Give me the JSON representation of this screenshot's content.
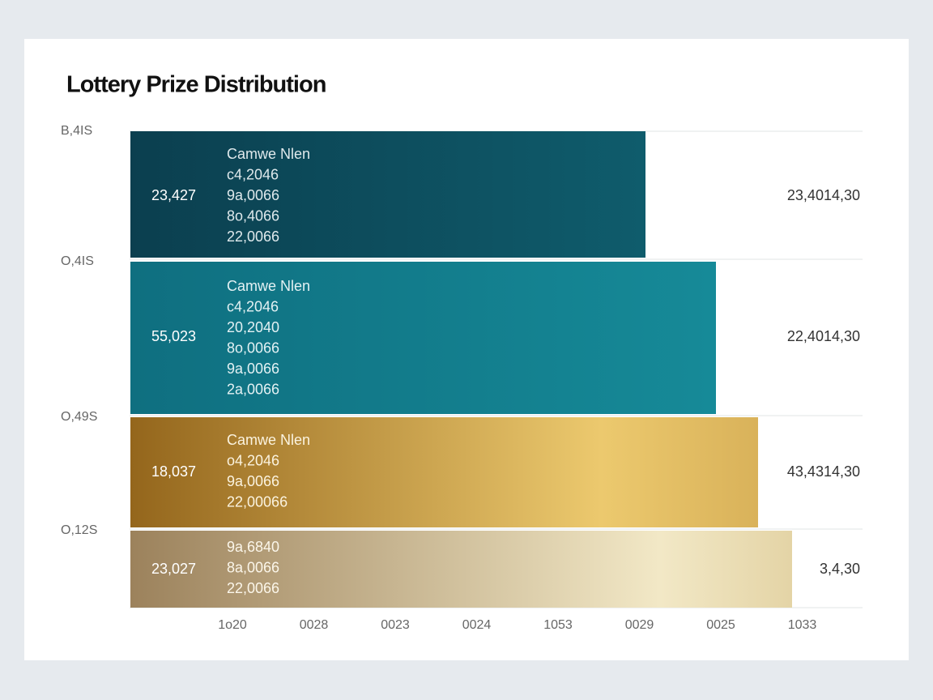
{
  "header": {
    "title": "Lottery Prize Distribution"
  },
  "rows": [
    {
      "axis_label": "B,4IS",
      "value_label": "23,427",
      "lines": [
        "Camwe Nlen",
        "c4,2046",
        "9a,0066",
        "8o,4066",
        "22,0066"
      ],
      "right_label": "23,4014,30"
    },
    {
      "axis_label": "O,4IS",
      "value_label": "55,023",
      "lines": [
        "Camwe Nlen",
        "c4,2046",
        "20,2040",
        "8o,0066",
        "9a,0066",
        "2a,0066"
      ],
      "right_label": "22,4014,30"
    },
    {
      "axis_label": "O,49S",
      "value_label": "18,037",
      "lines": [
        "Camwe Nlen",
        "o4,2046",
        "9a,0066",
        "22,00066"
      ],
      "right_label": "43,4314,30"
    },
    {
      "axis_label": "O,12S",
      "value_label": "23,027",
      "lines": [
        "9a,6840",
        "8a,0066",
        "22,0066"
      ],
      "right_label": "3,4,30"
    }
  ],
  "x_labels": [
    "1o20",
    "0028",
    "0023",
    "0024",
    "1053",
    "0029",
    "0025",
    "1033"
  ]
}
